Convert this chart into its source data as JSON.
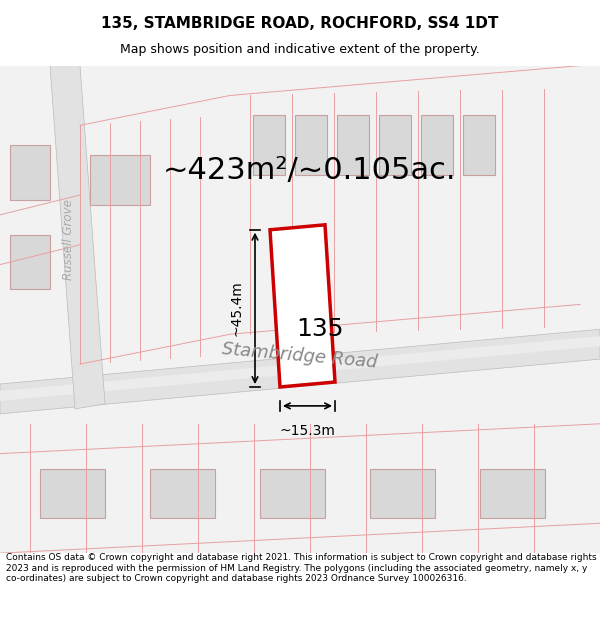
{
  "title": "135, STAMBRIDGE ROAD, ROCHFORD, SS4 1DT",
  "subtitle": "Map shows position and indicative extent of the property.",
  "area_text": "~423m²/~0.105ac.",
  "label_135": "135",
  "dim_height": "~45.4m",
  "dim_width": "~15.3m",
  "street_label": "Stambridge Road",
  "street_label2": "Russell Grove",
  "footer": "Contains OS data © Crown copyright and database right 2021. This information is subject to Crown copyright and database rights 2023 and is reproduced with the permission of HM Land Registry. The polygons (including the associated geometry, namely x, y co-ordinates) are subject to Crown copyright and database rights 2023 Ordnance Survey 100026316.",
  "bg_color": "#f5f5f5",
  "map_bg": "#f0f0f0",
  "road_color": "#d8d8d8",
  "plot_outline_color": "#e8a0a0",
  "building_fill": "#d8d8d8",
  "building_outline": "#d0a0a0",
  "highlight_color": "#cc0000",
  "highlight_fill": "#ffffff",
  "road_fill": "#e0e0e0",
  "title_fontsize": 11,
  "subtitle_fontsize": 9,
  "area_fontsize": 22,
  "dim_fontsize": 10,
  "street_fontsize": 13,
  "footer_fontsize": 6.5
}
